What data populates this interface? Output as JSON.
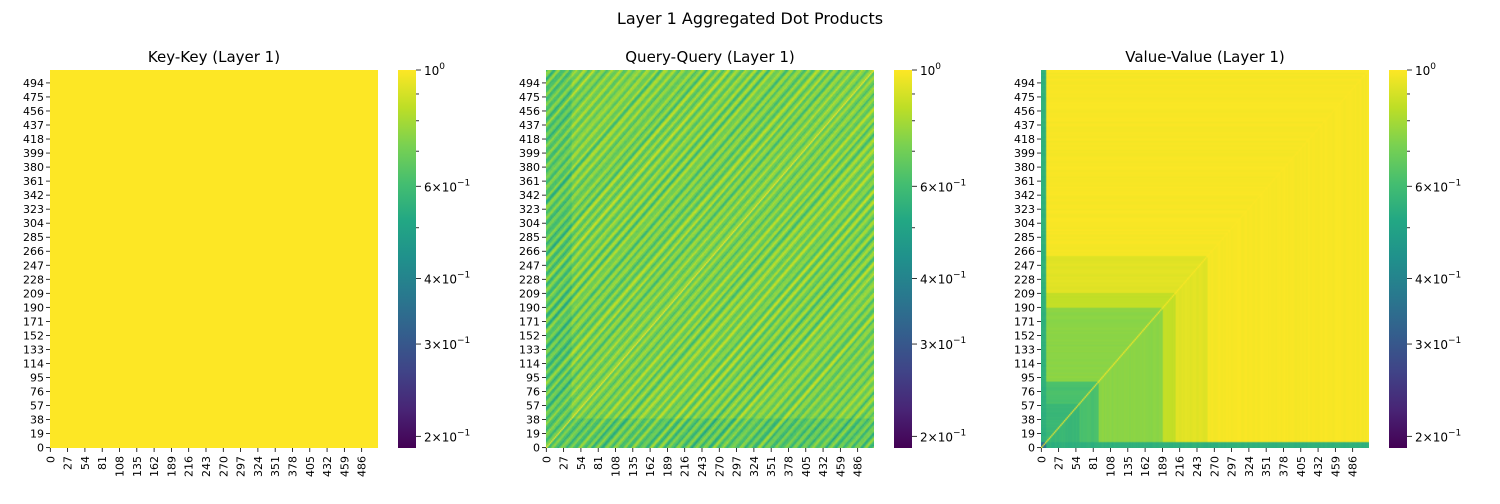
{
  "figure": {
    "title": "Layer 1 Aggregated Dot Products"
  },
  "colormap": "viridis",
  "colorbar": {
    "scale": "log",
    "range": [
      0.19,
      1.0
    ],
    "ticks": [
      {
        "value": 1.0,
        "base": "10",
        "exp": "0",
        "coef": ""
      },
      {
        "value": 0.6,
        "base": "10",
        "exp": "−1",
        "coef": "6×"
      },
      {
        "value": 0.4,
        "base": "10",
        "exp": "−1",
        "coef": "4×"
      },
      {
        "value": 0.3,
        "base": "10",
        "exp": "−1",
        "coef": "3×"
      },
      {
        "value": 0.2,
        "base": "10",
        "exp": "−1",
        "coef": "2×"
      }
    ],
    "minor_ticks": [
      0.9,
      0.8,
      0.7,
      0.5
    ]
  },
  "chart_data": [
    {
      "type": "heatmap",
      "title": "Key-Key (Layer 1)",
      "n": 512,
      "x_ticks": [
        "0",
        "27",
        "54",
        "81",
        "108",
        "135",
        "162",
        "189",
        "216",
        "243",
        "270",
        "297",
        "324",
        "351",
        "378",
        "405",
        "432",
        "459",
        "486"
      ],
      "y_ticks": [
        "0",
        "19",
        "38",
        "57",
        "76",
        "95",
        "114",
        "133",
        "152",
        "171",
        "190",
        "209",
        "228",
        "247",
        "266",
        "285",
        "304",
        "323",
        "342",
        "361",
        "380",
        "399",
        "418",
        "437",
        "456",
        "475",
        "494"
      ],
      "description_pattern": "uniform",
      "value_range": [
        1.0,
        1.0
      ],
      "scale": "log",
      "colorbar_range": [
        0.19,
        1.0
      ]
    },
    {
      "type": "heatmap",
      "title": "Query-Query (Layer 1)",
      "n": 512,
      "x_ticks": [
        "0",
        "27",
        "54",
        "81",
        "108",
        "135",
        "162",
        "189",
        "216",
        "243",
        "270",
        "297",
        "324",
        "351",
        "378",
        "405",
        "432",
        "459",
        "486"
      ],
      "y_ticks": [
        "0",
        "19",
        "38",
        "57",
        "76",
        "95",
        "114",
        "133",
        "152",
        "171",
        "190",
        "209",
        "228",
        "247",
        "266",
        "285",
        "304",
        "323",
        "342",
        "361",
        "380",
        "399",
        "418",
        "437",
        "456",
        "475",
        "494"
      ],
      "description_pattern": "diagonal-stripes",
      "value_range": [
        0.48,
        1.0
      ],
      "scale": "log",
      "colorbar_range": [
        0.19,
        1.0
      ]
    },
    {
      "type": "heatmap",
      "title": "Value-Value (Layer 1)",
      "n": 512,
      "x_ticks": [
        "0",
        "27",
        "54",
        "81",
        "108",
        "135",
        "162",
        "189",
        "216",
        "243",
        "270",
        "297",
        "324",
        "351",
        "378",
        "405",
        "432",
        "459",
        "486"
      ],
      "y_ticks": [
        "0",
        "19",
        "38",
        "57",
        "76",
        "95",
        "114",
        "133",
        "152",
        "171",
        "190",
        "209",
        "228",
        "247",
        "266",
        "285",
        "304",
        "323",
        "342",
        "361",
        "380",
        "399",
        "418",
        "437",
        "456",
        "475",
        "494"
      ],
      "description_pattern": "max-index-bands",
      "value_range": [
        0.33,
        1.0
      ],
      "scale": "log",
      "colorbar_range": [
        0.19,
        1.0
      ]
    }
  ]
}
